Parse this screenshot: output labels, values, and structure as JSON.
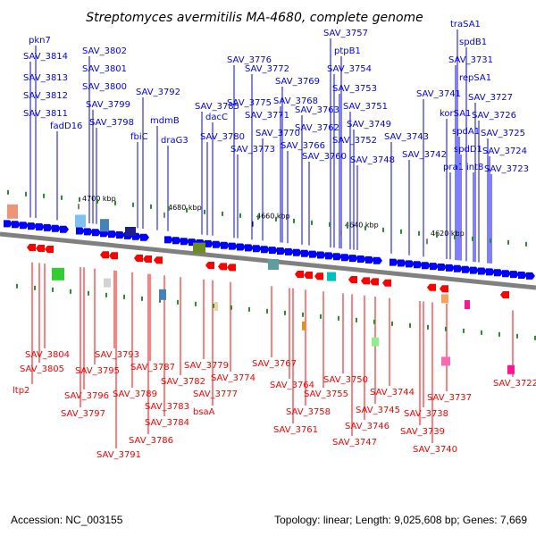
{
  "title": "Streptomyces avermitilis MA-4680, complete genome",
  "footer": {
    "accession": "Accession: NC_003155",
    "summary": "Topology: linear; Length: 9,025,608 bp; Genes: 7,669"
  },
  "colors": {
    "forward": "#0000ff",
    "reverse": "#ff0000",
    "backbone": "#808080",
    "tick": "#2e8b2e"
  },
  "scale_ticks": [
    "4700 kbp",
    "4680 kbp",
    "4660 kbp",
    "4640 kbp",
    "4620 kbp"
  ],
  "forward_labels": [
    "pkn7",
    "SAV_3814",
    "SAV_3813",
    "SAV_3812",
    "SAV_3811",
    "fadD16",
    "SAV_3802",
    "SAV_3801",
    "SAV_3800",
    "SAV_3799",
    "SAV_3798",
    "fbiC",
    "SAV_3792",
    "mdmB",
    "draG3",
    "SAV_3785",
    "dacC",
    "SAV_3780",
    "SAV_3776",
    "SAV_3772",
    "SAV_3775",
    "SAV_3771",
    "SAV_3770",
    "SAV_3773",
    "SAV_3769",
    "SAV_3768",
    "SAV_3766",
    "SAV_3763",
    "SAV_3762",
    "SAV_3760",
    "SAV_3757",
    "ptpB1",
    "SAV_3754",
    "SAV_3753",
    "SAV_3751",
    "SAV_3749",
    "SAV_3752",
    "SAV_3748",
    "SAV_3743",
    "SAV_3742",
    "traSA1",
    "spdB1",
    "SAV_3731",
    "SAV_3741",
    "repSA1",
    "SAV_3727",
    "korSA1",
    "SAV_3726",
    "spdA1",
    "SAV_3725",
    "spdD1",
    "SAV_3724",
    "pra1",
    "int8",
    "SAV_3723"
  ],
  "reverse_labels": [
    "SAV_3804",
    "SAV_3805",
    "ltp2",
    "SAV_3796",
    "SAV_3797",
    "SAV_3795",
    "SAV_3793",
    "SAV_3789",
    "SAV_3787",
    "SAV_3791",
    "SAV_3786",
    "SAV_3784",
    "SAV_3783",
    "SAV_3782",
    "SAV_3779",
    "SAV_3777",
    "SAV_3774",
    "bsaA",
    "SAV_3767",
    "SAV_3764",
    "SAV_3761",
    "SAV_3758",
    "SAV_3755",
    "SAV_3750",
    "SAV_3747",
    "SAV_3746",
    "SAV_3745",
    "SAV_3744",
    "SAV_3738",
    "SAV_3739",
    "SAV_3740",
    "SAV_3737",
    "SAV_3722"
  ]
}
